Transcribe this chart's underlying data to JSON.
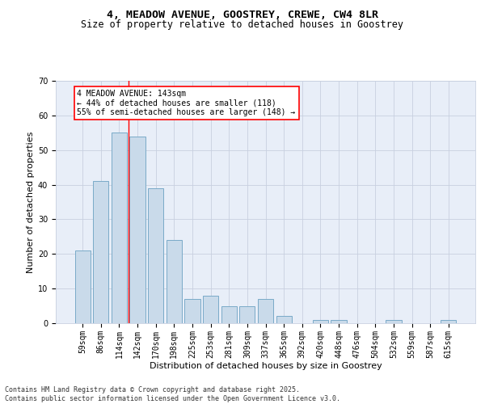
{
  "title": "4, MEADOW AVENUE, GOOSTREY, CREWE, CW4 8LR",
  "subtitle": "Size of property relative to detached houses in Goostrey",
  "xlabel": "Distribution of detached houses by size in Goostrey",
  "ylabel": "Number of detached properties",
  "categories": [
    "59sqm",
    "86sqm",
    "114sqm",
    "142sqm",
    "170sqm",
    "198sqm",
    "225sqm",
    "253sqm",
    "281sqm",
    "309sqm",
    "337sqm",
    "365sqm",
    "392sqm",
    "420sqm",
    "448sqm",
    "476sqm",
    "504sqm",
    "532sqm",
    "559sqm",
    "587sqm",
    "615sqm"
  ],
  "values": [
    21,
    41,
    55,
    54,
    39,
    24,
    7,
    8,
    5,
    5,
    7,
    2,
    0,
    1,
    1,
    0,
    0,
    1,
    0,
    0,
    1
  ],
  "bar_color": "#c9daea",
  "bar_edge_color": "#7aaac8",
  "grid_color": "#c8d0e0",
  "background_color": "#e8eef8",
  "redline_color": "red",
  "redline_x": 2.5,
  "annotation_text": "4 MEADOW AVENUE: 143sqm\n← 44% of detached houses are smaller (118)\n55% of semi-detached houses are larger (148) →",
  "annotation_box_color": "white",
  "annotation_box_edge": "red",
  "ylim": [
    0,
    70
  ],
  "yticks": [
    0,
    10,
    20,
    30,
    40,
    50,
    60,
    70
  ],
  "footer": "Contains HM Land Registry data © Crown copyright and database right 2025.\nContains public sector information licensed under the Open Government Licence v3.0.",
  "title_fontsize": 9.5,
  "subtitle_fontsize": 8.5,
  "axis_label_fontsize": 8,
  "tick_fontsize": 7,
  "annotation_fontsize": 7,
  "footer_fontsize": 6
}
